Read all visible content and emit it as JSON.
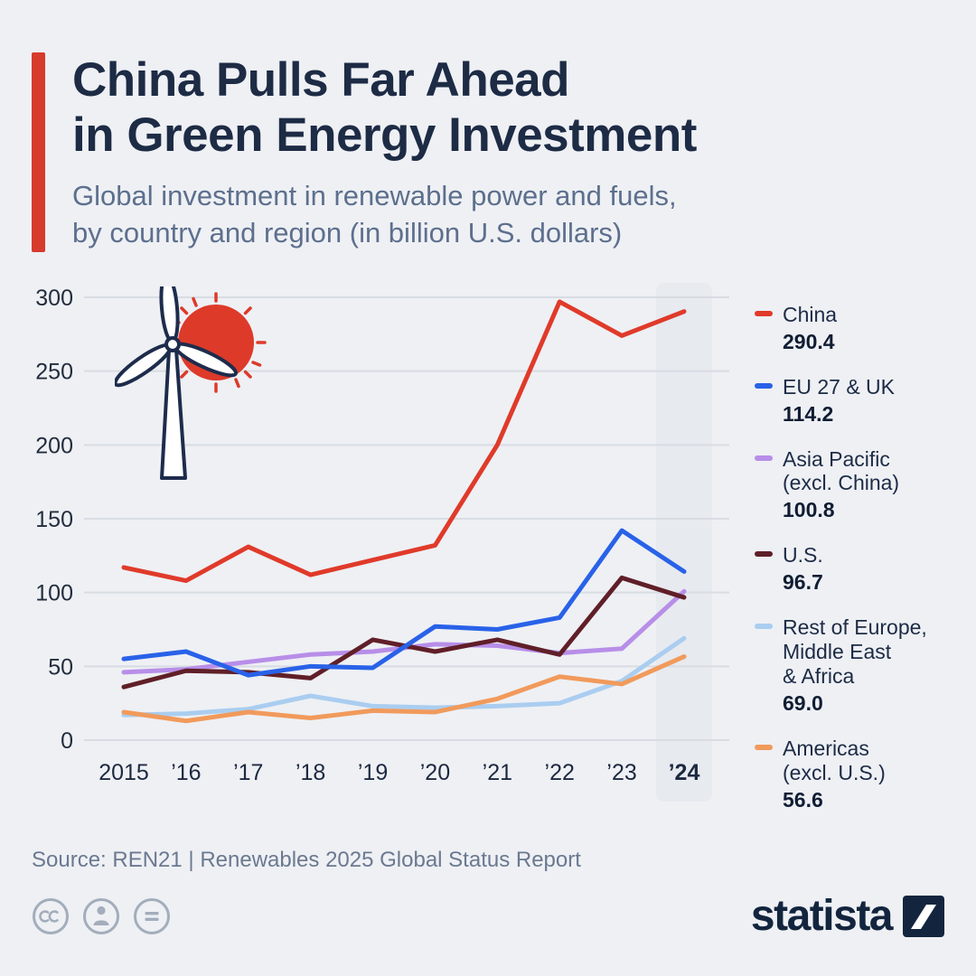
{
  "header": {
    "title_line1": "China Pulls Far Ahead",
    "title_line2": "in Green Energy Investment",
    "subtitle_line1": "Global investment in renewable power and fuels,",
    "subtitle_line2": "by country and region (in billion U.S. dollars)"
  },
  "chart_data": {
    "type": "line",
    "x_labels": [
      "2015",
      "’16",
      "’17",
      "’18",
      "’19",
      "’20",
      "’21",
      "’22",
      "’23",
      "’24"
    ],
    "ylim": [
      0,
      300
    ],
    "yticks": [
      0,
      50,
      100,
      150,
      200,
      250,
      300
    ],
    "grid": "horizontal",
    "highlight_last_column": true,
    "unit": "billion U.S. dollars",
    "series": [
      {
        "name": "China",
        "label": "China",
        "color": "#e03a2a",
        "values": [
          117,
          108,
          131,
          112,
          122,
          132,
          200,
          297,
          274,
          290.4
        ],
        "final_value": "290.4"
      },
      {
        "name": "EU 27 & UK",
        "label": "EU 27 & UK",
        "color": "#2962e8",
        "values": [
          55,
          60,
          44,
          50,
          49,
          77,
          75,
          83,
          142,
          114.2
        ],
        "final_value": "114.2"
      },
      {
        "name": "Asia Pacific (excl. China)",
        "label": "Asia Pacific\n(excl. China)",
        "color": "#b88ee8",
        "values": [
          46,
          48,
          53,
          58,
          60,
          65,
          64,
          59,
          62,
          100.8
        ],
        "final_value": "100.8"
      },
      {
        "name": "U.S.",
        "label": "U.S.",
        "color": "#601f28",
        "values": [
          36,
          47,
          46,
          42,
          68,
          60,
          68,
          58,
          110,
          96.7
        ],
        "final_value": "96.7"
      },
      {
        "name": "Rest of Europe, Middle East & Africa",
        "label": "Rest of Europe,\nMiddle East\n& Africa",
        "color": "#aacdf0",
        "values": [
          17,
          18,
          21,
          30,
          23,
          22,
          23,
          25,
          40,
          69.0
        ],
        "final_value": "69.0"
      },
      {
        "name": "Americas (excl. U.S.)",
        "label": "Americas\n(excl. U.S.)",
        "color": "#f19a5b",
        "values": [
          19,
          13,
          19,
          15,
          20,
          19,
          28,
          43,
          38,
          56.6
        ],
        "final_value": "56.6"
      }
    ],
    "draw_order": [
      4,
      5,
      2,
      3,
      1,
      0
    ],
    "legend_position": "right"
  },
  "footer": {
    "source": "Source: REN21 | Renewables 2025 Global Status Report",
    "brand": "statista"
  },
  "theme": {
    "accent_red": "#d63b2c",
    "title_color": "#1d2b45",
    "subtitle_color": "#5d6f8d",
    "background": "#eef0f4",
    "grid_color": "#d8dce3",
    "band_color": "#e7eaef",
    "axis_text_color": "#232d3d",
    "icon_gray": "#a3adbb"
  }
}
